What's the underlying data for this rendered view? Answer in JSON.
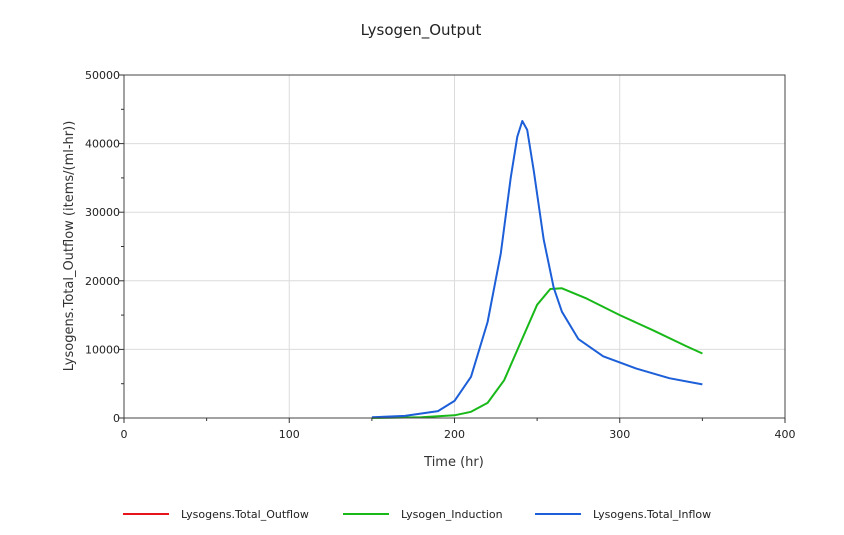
{
  "chart_data": {
    "type": "line",
    "title": "Lysogen_Output",
    "xlabel": "Time (hr)",
    "ylabel": "Lysogens.Total_Outflow (items/(ml-hr))",
    "xlim": [
      0,
      400
    ],
    "ylim": [
      0,
      50000
    ],
    "x_ticks": [
      0,
      100,
      200,
      300,
      400
    ],
    "y_ticks": [
      0,
      10000,
      20000,
      30000,
      40000,
      50000
    ],
    "x_tick_labels": [
      "0",
      "100",
      "200",
      "300",
      "400"
    ],
    "y_tick_labels": [
      "0",
      "10000",
      "20000",
      "30000",
      "40000",
      "50000"
    ],
    "grid": true,
    "legend_position": "bottom",
    "series": [
      {
        "name": "Lysogens.Total_Outflow",
        "color": "#e8141c",
        "points": []
      },
      {
        "name": "Lysogen_Induction",
        "color": "#19b819",
        "points": [
          [
            150,
            0
          ],
          [
            180,
            100
          ],
          [
            200,
            400
          ],
          [
            210,
            900
          ],
          [
            220,
            2200
          ],
          [
            230,
            5500
          ],
          [
            240,
            11000
          ],
          [
            250,
            16500
          ],
          [
            258,
            18800
          ],
          [
            265,
            18900
          ],
          [
            280,
            17400
          ],
          [
            300,
            15000
          ],
          [
            320,
            12800
          ],
          [
            340,
            10500
          ],
          [
            350,
            9400
          ]
        ]
      },
      {
        "name": "Lysogens.Total_Inflow",
        "color": "#1c5fd8",
        "points": [
          [
            150,
            100
          ],
          [
            170,
            300
          ],
          [
            190,
            1000
          ],
          [
            200,
            2500
          ],
          [
            210,
            6000
          ],
          [
            220,
            14000
          ],
          [
            228,
            24000
          ],
          [
            234,
            35000
          ],
          [
            238,
            41000
          ],
          [
            241,
            43300
          ],
          [
            244,
            42000
          ],
          [
            248,
            36000
          ],
          [
            254,
            26000
          ],
          [
            260,
            19000
          ],
          [
            265,
            15500
          ],
          [
            275,
            11500
          ],
          [
            290,
            9000
          ],
          [
            310,
            7200
          ],
          [
            330,
            5800
          ],
          [
            350,
            4900
          ]
        ]
      }
    ]
  }
}
